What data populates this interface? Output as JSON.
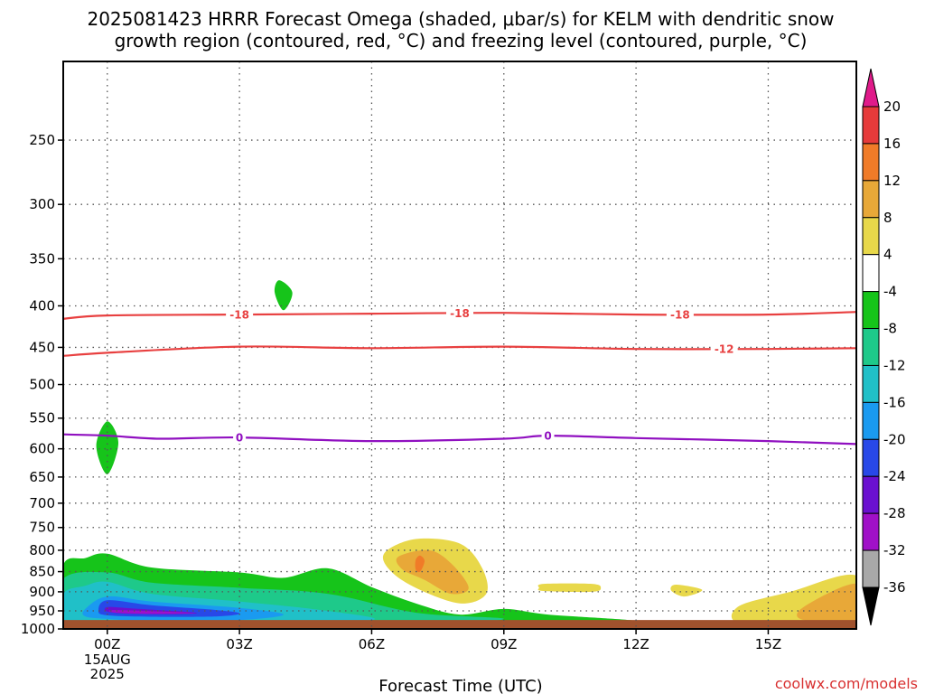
{
  "chart_data": {
    "type": "time-height cross section",
    "title_lines": [
      "2025081423 HRRR Forecast Omega (shaded, μbar/s) for KELM with dendritic snow",
      "growth region (contoured, red, °C) and freezing level (contoured, purple, °C)"
    ],
    "xlabel": "Forecast Time (UTC)",
    "credit": "coolwx.com/models",
    "y_axis": {
      "units": "hPa",
      "reversed": true,
      "range": [
        200,
        1000
      ],
      "ticks": [
        250,
        300,
        350,
        400,
        450,
        500,
        550,
        600,
        650,
        700,
        750,
        800,
        850,
        900,
        950,
        1000
      ]
    },
    "x_axis": {
      "range_hours": [
        -1,
        17
      ],
      "ticks": [
        {
          "hour": 0,
          "label": "00Z",
          "sublabels": [
            "15AUG",
            "2025"
          ]
        },
        {
          "hour": 3,
          "label": "03Z",
          "sublabels": []
        },
        {
          "hour": 6,
          "label": "06Z",
          "sublabels": []
        },
        {
          "hour": 9,
          "label": "09Z",
          "sublabels": []
        },
        {
          "hour": 12,
          "label": "12Z",
          "sublabels": []
        },
        {
          "hour": 15,
          "label": "15Z",
          "sublabels": []
        }
      ]
    },
    "grid": true,
    "colorbar": {
      "units": "μbar/s",
      "levels": [
        20,
        16,
        12,
        8,
        4,
        -4,
        -8,
        -12,
        -16,
        -20,
        -24,
        -28,
        -32,
        -36
      ],
      "bins": [
        {
          "range": [
            20,
            16
          ],
          "color": "#e63a3a"
        },
        {
          "range": [
            16,
            12
          ],
          "color": "#f07b28"
        },
        {
          "range": [
            12,
            8
          ],
          "color": "#e8a838"
        },
        {
          "range": [
            8,
            4
          ],
          "color": "#e8d84a"
        },
        {
          "range": [
            4,
            -4
          ],
          "color": "#ffffff"
        },
        {
          "range": [
            -4,
            -8
          ],
          "color": "#16c41a"
        },
        {
          "range": [
            -8,
            -12
          ],
          "color": "#1ec98a"
        },
        {
          "range": [
            -12,
            -16
          ],
          "color": "#20c0c8"
        },
        {
          "range": [
            -16,
            -20
          ],
          "color": "#1a9af0"
        },
        {
          "range": [
            -20,
            -24
          ],
          "color": "#2848e8"
        },
        {
          "range": [
            -24,
            -28
          ],
          "color": "#6a10d0"
        },
        {
          "range": [
            -28,
            -32
          ],
          "color": "#a010c8"
        },
        {
          "range": [
            -32,
            -36
          ],
          "color": "#a8a8a8"
        }
      ],
      "top_arrow_color": "#e01a8a",
      "bottom_arrow_color": "#000000"
    },
    "contours": [
      {
        "name": "-18",
        "color": "#e84040",
        "points": [
          [
            -1,
            415
          ],
          [
            0,
            411
          ],
          [
            3,
            410
          ],
          [
            6,
            409
          ],
          [
            9,
            408
          ],
          [
            12,
            410
          ],
          [
            15,
            410
          ],
          [
            17,
            407
          ]
        ],
        "labels": [
          {
            "hour": 3,
            "text": "-18"
          },
          {
            "hour": 8,
            "text": "-18"
          },
          {
            "hour": 13,
            "text": "-18"
          }
        ]
      },
      {
        "name": "-12",
        "color": "#e84040",
        "points": [
          [
            -1,
            461
          ],
          [
            0,
            457
          ],
          [
            3,
            449
          ],
          [
            6,
            451
          ],
          [
            9,
            449
          ],
          [
            12,
            452
          ],
          [
            15,
            452
          ],
          [
            17,
            451
          ]
        ],
        "labels": [
          {
            "hour": 14,
            "text": "-12"
          }
        ]
      },
      {
        "name": "0",
        "color": "#9010c0",
        "points": [
          [
            -1,
            576
          ],
          [
            0,
            578
          ],
          [
            1.2,
            583
          ],
          [
            3,
            581
          ],
          [
            6,
            587
          ],
          [
            9,
            583
          ],
          [
            10,
            578
          ],
          [
            12,
            582
          ],
          [
            15,
            587
          ],
          [
            17,
            592
          ]
        ],
        "labels": [
          {
            "hour": 3,
            "text": "0"
          },
          {
            "hour": 10,
            "text": "0"
          }
        ]
      }
    ],
    "shaded_regions": [
      {
        "bin": "-4..-8",
        "color": "#16c41a",
        "points": [
          [
            -1,
            835
          ],
          [
            -0.5,
            818
          ],
          [
            0,
            808
          ],
          [
            1,
            840
          ],
          [
            3,
            852
          ],
          [
            4,
            865
          ],
          [
            5,
            842
          ],
          [
            6,
            888
          ],
          [
            7,
            930
          ],
          [
            8,
            960
          ],
          [
            9,
            945
          ],
          [
            10,
            960
          ],
          [
            12,
            978
          ],
          [
            10,
            985
          ],
          [
            8,
            990
          ],
          [
            6,
            995
          ],
          [
            3,
            995
          ],
          [
            0,
            995
          ],
          [
            -1,
            995
          ]
        ]
      },
      {
        "bin": "-8..-12",
        "color": "#1ec98a",
        "points": [
          [
            -1,
            868
          ],
          [
            0,
            852
          ],
          [
            1,
            877
          ],
          [
            3,
            890
          ],
          [
            5,
            905
          ],
          [
            7,
            955
          ],
          [
            9,
            972
          ],
          [
            7,
            988
          ],
          [
            3,
            992
          ],
          [
            0,
            992
          ],
          [
            -1,
            992
          ]
        ]
      },
      {
        "bin": "-12..-16",
        "color": "#20c0c8",
        "points": [
          [
            -1,
            905
          ],
          [
            -0.5,
            885
          ],
          [
            0,
            875
          ],
          [
            1,
            905
          ],
          [
            3,
            925
          ],
          [
            5,
            950
          ],
          [
            6,
            975
          ],
          [
            3,
            985
          ],
          [
            0,
            985
          ],
          [
            -1,
            985
          ]
        ]
      },
      {
        "bin": "-16..-20",
        "color": "#1a9af0",
        "points": [
          [
            -0.5,
            945
          ],
          [
            0,
            912
          ],
          [
            1,
            925
          ],
          [
            3,
            942
          ],
          [
            4,
            960
          ],
          [
            3,
            975
          ],
          [
            1,
            978
          ],
          [
            0,
            972
          ],
          [
            -0.5,
            965
          ]
        ]
      },
      {
        "bin": "-20..-24",
        "color": "#2848e8",
        "points": [
          [
            -0.2,
            950
          ],
          [
            0,
            922
          ],
          [
            1,
            935
          ],
          [
            2.5,
            948
          ],
          [
            3,
            957
          ],
          [
            2.5,
            965
          ],
          [
            1,
            966
          ],
          [
            0,
            962
          ]
        ]
      },
      {
        "bin": "-24..-28",
        "color": "#6a10d0",
        "points": [
          [
            0,
            940
          ],
          [
            0.5,
            943
          ],
          [
            2,
            955
          ],
          [
            1.5,
            959
          ],
          [
            0.5,
            958
          ],
          [
            0,
            952
          ]
        ]
      },
      {
        "bin": "-28..-32",
        "color": "#a010c8",
        "points": [
          [
            0.1,
            948
          ],
          [
            1,
            951
          ],
          [
            2,
            956
          ],
          [
            1,
            958
          ],
          [
            0.2,
            955
          ]
        ]
      },
      {
        "bin": "-4..-8",
        "color": "#16c41a",
        "points": [
          [
            3.9,
            372
          ],
          [
            4.2,
            385
          ],
          [
            4,
            405
          ],
          [
            3.8,
            385
          ]
        ]
      },
      {
        "bin": "-4..-8",
        "color": "#16c41a",
        "points": [
          [
            0,
            555
          ],
          [
            0.25,
            590
          ],
          [
            0,
            645
          ],
          [
            -0.25,
            595
          ]
        ]
      },
      {
        "bin": "4..8",
        "color": "#e8d84a",
        "points": [
          [
            6.3,
            805
          ],
          [
            7,
            775
          ],
          [
            8,
            785
          ],
          [
            8.5,
            840
          ],
          [
            8.6,
            905
          ],
          [
            8,
            930
          ],
          [
            7,
            890
          ],
          [
            6.4,
            845
          ]
        ]
      },
      {
        "bin": "8..12",
        "color": "#e8a838",
        "points": [
          [
            6.6,
            815
          ],
          [
            7.3,
            800
          ],
          [
            7.8,
            830
          ],
          [
            8.2,
            890
          ],
          [
            7.8,
            905
          ],
          [
            7.2,
            870
          ],
          [
            6.7,
            845
          ]
        ]
      },
      {
        "bin": "12..16",
        "color": "#f07b28",
        "points": [
          [
            7.0,
            822
          ],
          [
            7.1,
            812
          ],
          [
            7.2,
            825
          ],
          [
            7.1,
            850
          ],
          [
            7.0,
            845
          ]
        ]
      },
      {
        "bin": "4..8",
        "color": "#e8d84a",
        "points": [
          [
            9.9,
            880
          ],
          [
            11,
            880
          ],
          [
            11.2,
            890
          ],
          [
            11,
            900
          ],
          [
            9.9,
            898
          ],
          [
            9.8,
            890
          ]
        ]
      },
      {
        "bin": "4..8",
        "color": "#e8d84a",
        "points": [
          [
            12.9,
            882
          ],
          [
            13.5,
            895
          ],
          [
            13.1,
            912
          ],
          [
            12.8,
            897
          ]
        ]
      },
      {
        "bin": "4..8",
        "color": "#e8d84a",
        "points": [
          [
            14.3,
            940
          ],
          [
            15.5,
            900
          ],
          [
            17,
            860
          ],
          [
            17,
            990
          ],
          [
            14.5,
            990
          ]
        ]
      },
      {
        "bin": "8..12",
        "color": "#e8a838",
        "points": [
          [
            15.8,
            940
          ],
          [
            17,
            880
          ],
          [
            17,
            975
          ],
          [
            15.8,
            975
          ]
        ]
      }
    ],
    "ground": {
      "color": "#a0522d",
      "top_hpa": 975
    }
  }
}
